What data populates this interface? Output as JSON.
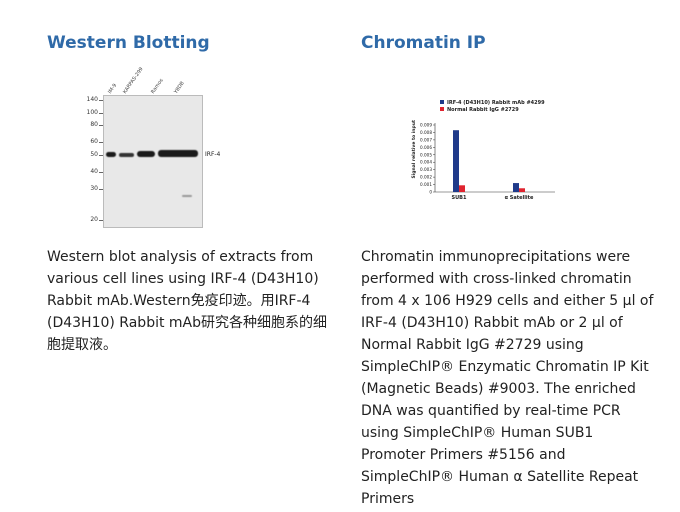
{
  "left": {
    "heading": "Western Blotting",
    "caption": "Western blot analysis of extracts from various cell lines using IRF-4 (D43H10) Rabbit mAb.Western免疫印迹。用IRF-4 (D43H10) Rabbit mAb研究各种细胞系的细胞提取液。",
    "blot": {
      "mw_markers": [
        "140",
        "100",
        "80",
        "60",
        "50",
        "40",
        "30",
        "20"
      ],
      "lanes": [
        "IM-9",
        "KARPAS-299",
        "Ramos",
        "Y8DB"
      ],
      "band_label": "IRF-4"
    }
  },
  "right": {
    "heading": "Chromatin IP",
    "caption": "Chromatin immunoprecipitations were performed with cross-linked chromatin from 4 x 106 H929 cells and either 5 µl of IRF-4 (D43H10) Rabbit mAb or 2 µl of Normal Rabbit IgG #2729 using SimpleChIP® Enzymatic Chromatin IP Kit (Magnetic Beads) #9003. The enriched DNA was quantified by real-time PCR using SimpleChIP® Human SUB1 Promoter Primers #5156 and SimpleChIP® Human α Satellite Repeat Primers"
  },
  "chart_data": {
    "type": "bar",
    "categories": [
      "SUB1",
      "α Satellite"
    ],
    "series": [
      {
        "name": "IRF-4 (D43H10) Rabbit mAb #4299",
        "values": [
          0.0083,
          0.0012
        ],
        "color": "#1f3a8a"
      },
      {
        "name": "Normal Rabbit IgG #2729",
        "values": [
          0.0009,
          0.0005
        ],
        "color": "#e0242f"
      }
    ],
    "ylabel": "Signal relative to input",
    "yticks": [
      "0",
      "0.001",
      "0.002",
      "0.003",
      "0.004",
      "0.005",
      "0.006",
      "0.007",
      "0.008",
      "0.009"
    ],
    "ylim": [
      0,
      0.009
    ],
    "legend": "top"
  }
}
